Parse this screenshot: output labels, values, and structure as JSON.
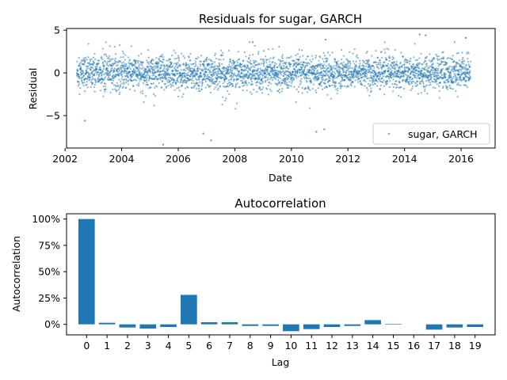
{
  "chart_data": [
    {
      "type": "scatter",
      "title": "Residuals for sugar, GARCH",
      "xlabel": "Date",
      "ylabel": "Residual",
      "xlim": [
        "2002-01-20",
        "2017-03-15"
      ],
      "ylim": [
        -8.8,
        5.2
      ],
      "x_ticks": [
        {
          "label": "2002",
          "value": "2002-01-01"
        },
        {
          "label": "2004",
          "value": "2004-01-01"
        },
        {
          "label": "2006",
          "value": "2006-01-01"
        },
        {
          "label": "2008",
          "value": "2008-01-01"
        },
        {
          "label": "2010",
          "value": "2010-01-01"
        },
        {
          "label": "2012",
          "value": "2012-01-01"
        },
        {
          "label": "2014",
          "value": "2014-01-01"
        },
        {
          "label": "2016",
          "value": "2016-01-01"
        }
      ],
      "y_ticks": [
        {
          "label": "5",
          "value": 5
        },
        {
          "label": "0",
          "value": 0
        },
        {
          "label": "−5",
          "value": -5
        }
      ],
      "series": [
        {
          "name": "sugar, GARCH",
          "color": "#1f77b4",
          "x_range": [
            "2002-06-01",
            "2016-05-01"
          ],
          "spread": "dense cloud of daily residuals, roughly standard normal",
          "x_extremes": [
            "2002-09-15",
            "2005-06-20",
            "2006-11-20",
            "2007-03-01",
            "2010-11-20",
            "2011-03-01",
            "2014-07-15",
            "2014-10-01",
            "2011-03-20",
            "2016-03-01",
            "2008-08-20"
          ],
          "y_extremes": [
            -5.6,
            -8.4,
            -7.1,
            -7.9,
            -6.9,
            -6.6,
            4.5,
            4.4,
            3.9,
            4.1,
            3.6
          ]
        }
      ],
      "legend": {
        "position": "lower-right",
        "entries": [
          "sugar, GARCH"
        ]
      },
      "grid": false
    },
    {
      "type": "bar",
      "title": "Autocorrelation",
      "xlabel": "Lag",
      "ylabel": "Autocorrelation",
      "categories": [
        "0",
        "1",
        "2",
        "3",
        "4",
        "5",
        "6",
        "7",
        "8",
        "9",
        "10",
        "11",
        "12",
        "13",
        "14",
        "15",
        "16",
        "17",
        "18",
        "19"
      ],
      "values": [
        1.0,
        0.015,
        -0.03,
        -0.04,
        -0.025,
        0.28,
        0.02,
        0.02,
        -0.015,
        -0.015,
        -0.065,
        -0.045,
        -0.025,
        -0.015,
        0.04,
        0.005,
        0.0,
        -0.05,
        -0.03,
        -0.025
      ],
      "ylim": [
        -0.1,
        1.05
      ],
      "y_ticks": [
        {
          "label": "100%",
          "value": 1.0
        },
        {
          "label": "75%",
          "value": 0.75
        },
        {
          "label": "50%",
          "value": 0.5
        },
        {
          "label": "25%",
          "value": 0.25
        },
        {
          "label": "0%",
          "value": 0.0
        }
      ],
      "color": "#1f77b4",
      "grid": false
    }
  ]
}
